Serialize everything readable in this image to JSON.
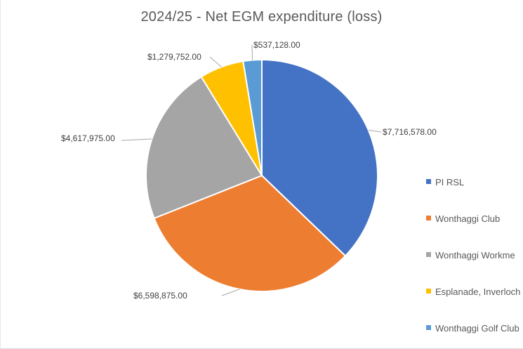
{
  "chart_data": {
    "type": "pie",
    "title": "2024/25 - Net EGM expenditure (loss)",
    "categories": [
      "PI RSL",
      "Wonthaggi Club",
      "Wonthaggi Workmen's Club",
      "Esplanade, Inverloch",
      "Wonthaggi Golf Club"
    ],
    "values": [
      7716578.0,
      6598875.0,
      4617975.0,
      1279752.0,
      537128.0
    ],
    "data_labels": [
      "$7,716,578.00",
      "$6,598,875.00",
      "$4,617,975.00",
      "$1,279,752.00",
      "$537,128.00"
    ],
    "colors": [
      "#4472c4",
      "#ed7d31",
      "#a5a5a5",
      "#ffc000",
      "#5b9bd5"
    ],
    "start_angle": "12 o'clock",
    "direction": "clockwise",
    "legend_position": "right",
    "legend_entries": [
      "PI RSL",
      "Wonthaggi Club",
      "Wonthaggi Workme",
      "Esplanade, Inverloch",
      "Wonthaggi Golf Club"
    ]
  }
}
